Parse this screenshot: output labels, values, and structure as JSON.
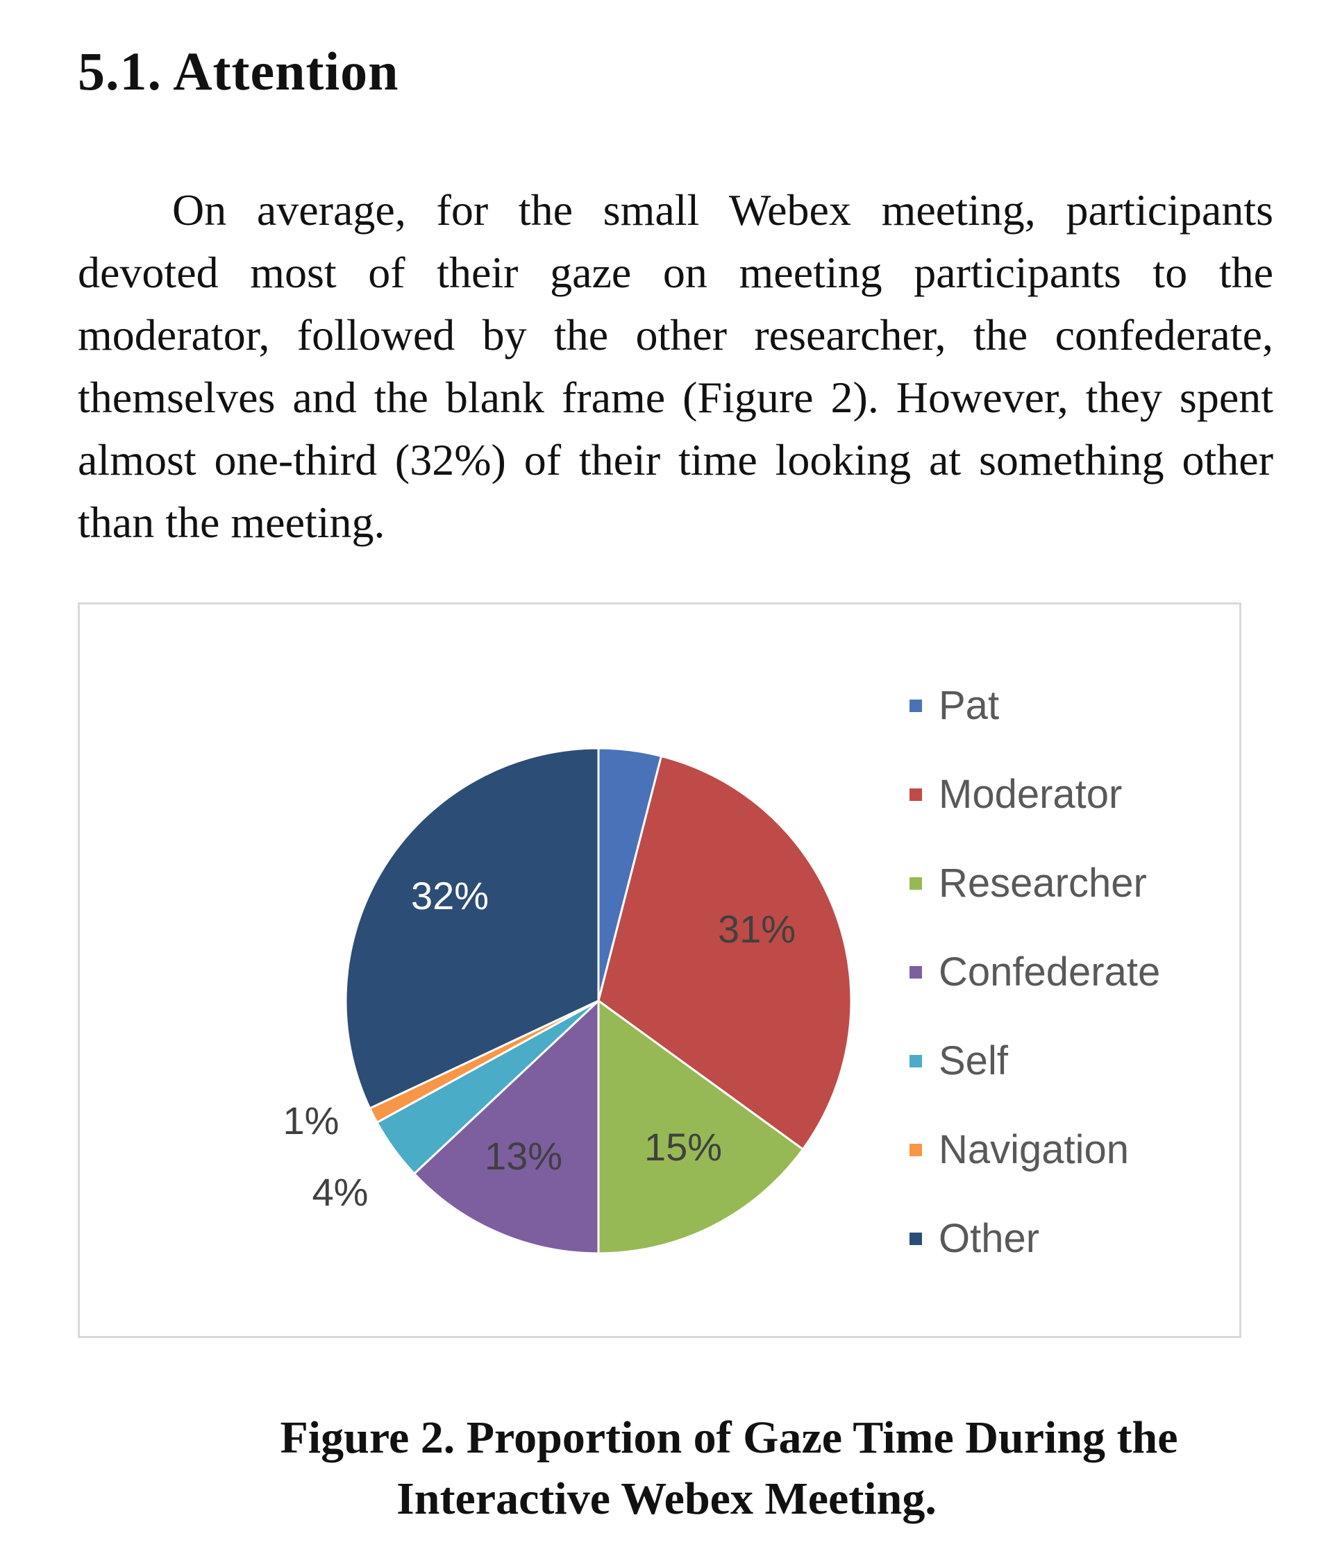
{
  "section": {
    "heading": "5.1.  Attention",
    "paragraph": "On average, for the small Webex meeting, participants devoted most of their gaze on meeting participants to the moderator, followed by the other researcher, the confederate, themselves and the blank frame (Figure 2). However, they spent almost one-third (32%) of their time looking at something other than the meeting."
  },
  "caption": {
    "line1": "Figure 2.  Proportion of Gaze Time During the",
    "line2": "Interactive Webex Meeting."
  },
  "chart_data": {
    "type": "pie",
    "title": "",
    "legend_position": "right",
    "categories": [
      "Pat",
      "Moderator",
      "Researcher",
      "Confederate",
      "Self",
      "Navigation",
      "Other"
    ],
    "values": [
      4,
      31,
      15,
      13,
      4,
      1,
      32
    ],
    "data_labels": [
      "",
      "31%",
      "15%",
      "13%",
      "4%",
      "1%",
      "32%"
    ],
    "colors": [
      "#4a72b8",
      "#be4b48",
      "#97b955",
      "#7d5fa0",
      "#4aacc6",
      "#f79646",
      "#2c4d75"
    ]
  }
}
